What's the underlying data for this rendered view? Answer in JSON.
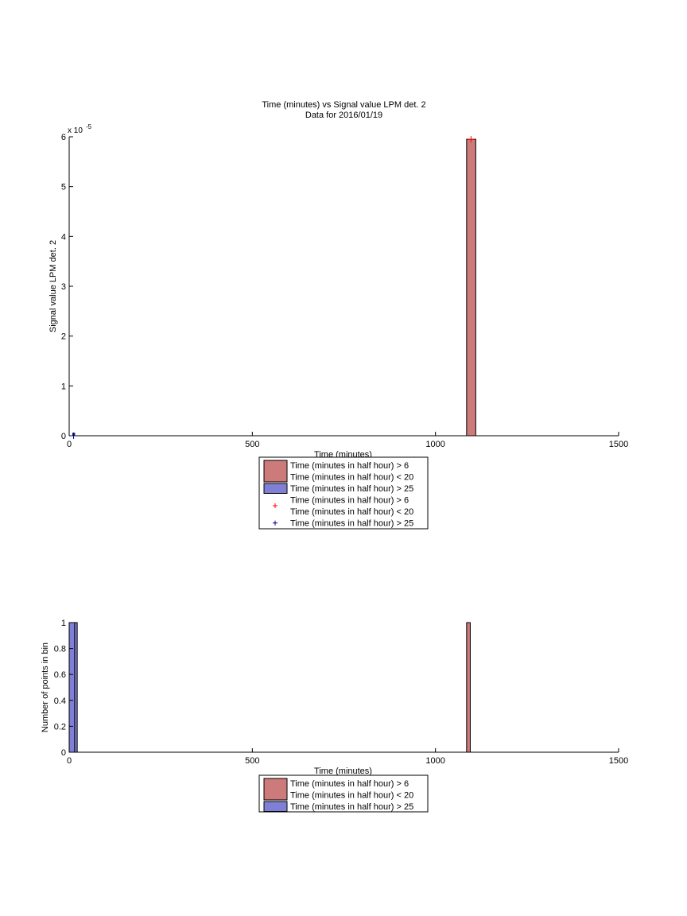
{
  "chart_data": [
    {
      "type": "bar",
      "title": "Time (minutes) vs Signal value LPM det. 2",
      "subtitle": "Data for 2016/01/19",
      "xlabel": "Time (minutes)",
      "ylabel": "Signal value LPM det. 2",
      "xlim": [
        0,
        1500
      ],
      "ylim": [
        0,
        6e-05
      ],
      "y_exponent_label": "x 10",
      "y_exponent_power": "-5",
      "xticks": [
        "0",
        "500",
        "1000",
        "1500"
      ],
      "yticks": [
        "0",
        "1",
        "2",
        "3",
        "4",
        "5",
        "6"
      ],
      "grid": false,
      "legend_position": "below",
      "series": [
        {
          "name": "Time (minutes in half hour) > 6 Time (minutes in half hour) < 20",
          "kind": "bar",
          "color": "#cc7a7a",
          "bars": [
            {
              "x0": 1085,
              "x1": 1110,
              "y": 5.95e-05
            }
          ]
        },
        {
          "name": "Time (minutes in half hour) > 25",
          "kind": "bar",
          "color": "#7f7fd5",
          "bars": [
            {
              "x0": 10,
              "x1": 15,
              "y": 5e-07
            }
          ]
        },
        {
          "name": "Time (minutes in half hour) > 6 Time (minutes in half hour) < 20",
          "kind": "marker",
          "marker": "+",
          "color": "#ff0000",
          "points": [
            {
              "x": 1097,
              "y": 5.95e-05
            }
          ]
        },
        {
          "name": "Time (minutes in half hour) > 25",
          "kind": "marker",
          "marker": "+",
          "color": "#00008b",
          "points": [
            {
              "x": 12,
              "y": 0.0
            }
          ]
        }
      ],
      "legend": [
        {
          "lines": [
            "Time (minutes in half hour) > 6",
            "Time (minutes in half hour) < 20"
          ],
          "swatch": "box",
          "color": "#cc7a7a"
        },
        {
          "lines": [
            "Time (minutes in half hour) > 25"
          ],
          "swatch": "box",
          "color": "#7f7fd5"
        },
        {
          "lines": [
            "Time (minutes in half hour) > 6",
            "Time (minutes in half hour) < 20"
          ],
          "swatch": "plus",
          "color": "#ff0000"
        },
        {
          "lines": [
            "Time (minutes in half hour) > 25"
          ],
          "swatch": "plus",
          "color": "#00008b"
        }
      ]
    },
    {
      "type": "bar",
      "title": "",
      "xlabel": "Time (minutes)",
      "ylabel": "Number of points in bin",
      "xlim": [
        0,
        1500
      ],
      "ylim": [
        0,
        1
      ],
      "xticks": [
        "0",
        "500",
        "1000",
        "1500"
      ],
      "yticks": [
        "0",
        "0.2",
        "0.4",
        "0.6",
        "0.8",
        "1"
      ],
      "grid": false,
      "legend_position": "below",
      "series": [
        {
          "name": "Time (minutes in half hour) > 6 Time (minutes in half hour) < 20",
          "kind": "bar",
          "color": "#cc7a7a",
          "bars": [
            {
              "x0": 1085,
              "x1": 1095,
              "y": 1
            }
          ]
        },
        {
          "name": "Time (minutes in half hour) > 25",
          "kind": "bar",
          "color": "#7f7fd5",
          "bars": [
            {
              "x0": 0,
              "x1": 15,
              "y": 1
            },
            {
              "x0": 15,
              "x1": 22,
              "y": 1
            }
          ]
        }
      ],
      "legend": [
        {
          "lines": [
            "Time (minutes in half hour) > 6",
            "Time (minutes in half hour) < 20"
          ],
          "swatch": "box",
          "color": "#cc7a7a"
        },
        {
          "lines": [
            "Time (minutes in half hour) > 25"
          ],
          "swatch": "box",
          "color": "#7f7fd5"
        }
      ]
    }
  ]
}
